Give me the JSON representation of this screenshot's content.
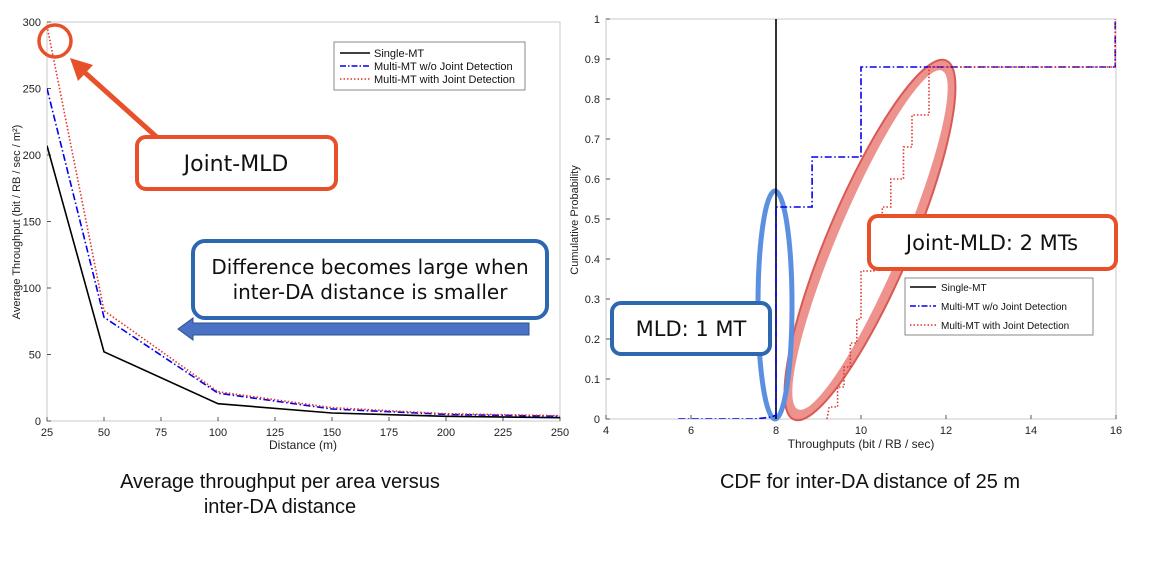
{
  "colors": {
    "single": "#000000",
    "multi_wo": "#0000ee",
    "multi_jd": "#e8312b",
    "orange": "#e8502a",
    "blue_box": "#2e67b1",
    "arrow_fill": "#4a72c4",
    "blue_ellipse": "#5b8fe0",
    "red_ellipse": "#e8736d"
  },
  "captions": {
    "left_line1": "Average throughput per area versus",
    "left_line2": "inter-DA distance",
    "right": "CDF for inter-DA distance of 25 m"
  },
  "annotations": {
    "joint_mld": "Joint-MLD",
    "difference_line1": "Difference becomes large when",
    "difference_line2": "inter-DA distance is smaller",
    "mld_1mt": "MLD: 1 MT",
    "joint_mld_2mts": "Joint-MLD: 2 MTs"
  },
  "chart_data": [
    {
      "type": "line",
      "xlabel": "Distance (m)",
      "ylabel": "Average Throughput (bit / RB / sec / m²)",
      "xlim": [
        25,
        250
      ],
      "ylim": [
        0,
        300
      ],
      "xticks": [
        25,
        50,
        75,
        100,
        125,
        150,
        175,
        200,
        225,
        250
      ],
      "yticks": [
        0,
        50,
        100,
        150,
        200,
        250,
        300
      ],
      "legend_position": "top-right",
      "series": [
        {
          "name": "Single-MT",
          "style": "solid",
          "x": [
            25,
            50,
            100,
            150,
            200,
            250
          ],
          "y": [
            207,
            52,
            13,
            6,
            3.5,
            2.5
          ]
        },
        {
          "name": "Multi-MT w/o Joint Detection",
          "style": "dashdot",
          "x": [
            25,
            50,
            100,
            150,
            200,
            250
          ],
          "y": [
            250,
            78,
            21,
            9,
            5,
            3.5
          ]
        },
        {
          "name": "Multi-MT with Joint Detection",
          "style": "dotted",
          "x": [
            25,
            50,
            100,
            150,
            200,
            250
          ],
          "y": [
            297,
            83,
            22,
            10,
            5.5,
            4
          ]
        }
      ]
    },
    {
      "type": "line",
      "xlabel": "Throughputs (bit / RB / sec)",
      "ylabel": "Cumulative Probability",
      "xlim": [
        4,
        16
      ],
      "ylim": [
        0,
        1
      ],
      "xticks": [
        4,
        6,
        8,
        10,
        12,
        14,
        16
      ],
      "yticks": [
        0,
        0.1,
        0.2,
        0.3,
        0.4,
        0.5,
        0.6,
        0.7,
        0.8,
        0.9,
        1
      ],
      "legend_position": "center-right",
      "series": [
        {
          "name": "Single-MT",
          "style": "solid",
          "x": [
            8,
            8
          ],
          "y": [
            0,
            1
          ]
        },
        {
          "name": "Multi-MT w/o Joint Detection",
          "style": "dashdot",
          "x": [
            5.7,
            7.5,
            7.9,
            8,
            8,
            8.85,
            8.85,
            9.7,
            9.7,
            10,
            10,
            15.98,
            15.98
          ],
          "y": [
            0,
            0,
            0.005,
            0.01,
            0.53,
            0.53,
            0.655,
            0.655,
            0.655,
            0.655,
            0.88,
            0.88,
            1
          ]
        },
        {
          "name": "Multi-MT with Joint Detection",
          "style": "dotted",
          "x": [
            9.2,
            9.25,
            9.45,
            9.45,
            9.6,
            9.6,
            9.75,
            9.75,
            9.9,
            9.9,
            10.0,
            10.0,
            10.3,
            10.3,
            10.5,
            10.5,
            10.7,
            10.7,
            11.0,
            11.0,
            11.2,
            11.2,
            11.6,
            11.6,
            15.98,
            15.98
          ],
          "y": [
            0,
            0.03,
            0.03,
            0.08,
            0.08,
            0.13,
            0.13,
            0.19,
            0.19,
            0.25,
            0.25,
            0.37,
            0.37,
            0.47,
            0.47,
            0.53,
            0.53,
            0.6,
            0.6,
            0.68,
            0.68,
            0.76,
            0.76,
            0.88,
            0.88,
            1
          ]
        }
      ]
    }
  ]
}
